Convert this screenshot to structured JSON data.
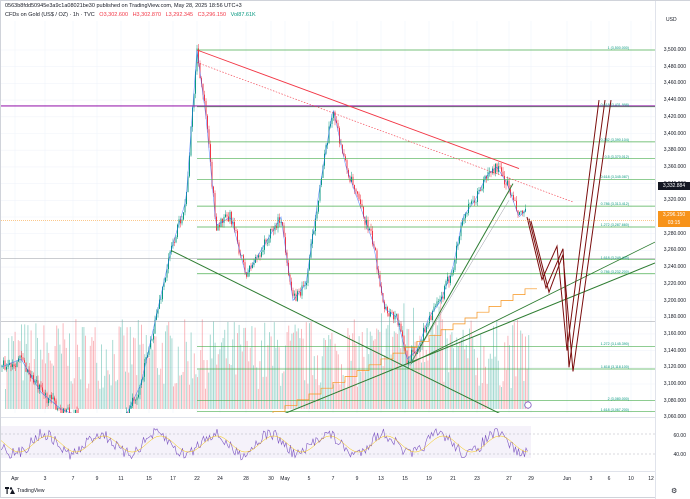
{
  "header": {
    "snapshot_line": "0563b8fdd50945e3a9c1a08021be30 published on TradingView.com, May 28, 2025 18:56 UTC+3",
    "symbol": "CFDs on Gold (US$ / OZ) · 1h · TVC",
    "open": "O3,302.600",
    "high": "H3,302.870",
    "low": "L3,292.345",
    "close": "C3,296.150",
    "change": "Vol87.61K"
  },
  "price_axis": {
    "currency": "USD",
    "labels": [
      "3,500.000",
      "3,480.000",
      "3,460.000",
      "3,440.000",
      "3,420.000",
      "3,400.000",
      "3,380.000",
      "3,360.000",
      "3,340.000",
      "3,320.000",
      "3,300.000",
      "3,280.000",
      "3,260.000",
      "3,240.000",
      "3,220.000",
      "3,200.000",
      "3,180.000",
      "3,160.000",
      "3,140.000",
      "3,120.000",
      "3,100.000",
      "3,080.000",
      "3,060.000"
    ],
    "tag_current": "3,296.150",
    "tag_countdown": "03:15",
    "tag_level": "3,332.884",
    "rsi_labels": [
      "60.00",
      "40.00"
    ]
  },
  "time_axis": {
    "labels": [
      "Apr",
      "3",
      "7",
      "9",
      "11",
      "15",
      "17",
      "22",
      "24",
      "28",
      "30",
      "May",
      "5",
      "7",
      "9",
      "13",
      "15",
      "19",
      "21",
      "23",
      "27",
      "29",
      "Jun",
      "3",
      "6",
      "10",
      "12"
    ]
  },
  "fib_labels": [
    "1 (3,500.000)",
    "0.618 (3,431.998)",
    "0.382 (3,390.104)",
    "0.5 (3,370.012)",
    "0.618 (3,345.087)",
    "0.786 (3,313.412)",
    "1.272 (3,287.660)",
    "1.618 (3,249.450)",
    "0.786 (3,232.200)",
    "1.272 (3,145.390)",
    "1.618 (3,118.100)",
    "2 (3,080.000)",
    "1.618 (3,067.200)"
  ],
  "footer": {
    "brand": "TradingView"
  },
  "colors": {
    "up": "#089981",
    "down": "#f23645",
    "fib": "#4caf50",
    "trend": "#f23645",
    "forecast": "#7b0d0d",
    "rsi": "#7e57c2",
    "level": "#9c27b0"
  }
}
